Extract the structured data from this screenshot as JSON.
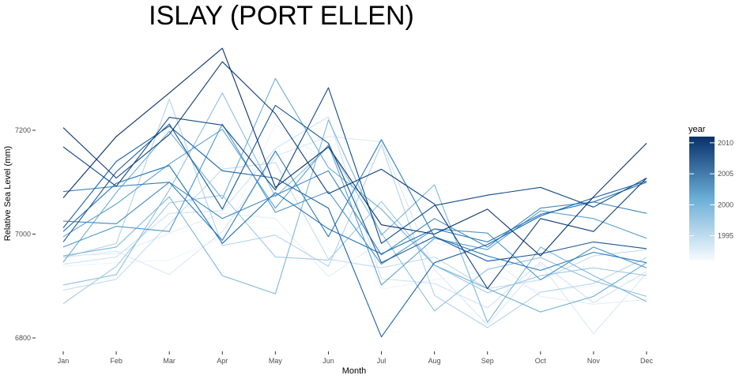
{
  "chart_data": {
    "type": "line",
    "title": "ISLAY (PORT ELLEN)",
    "xlabel": "Month",
    "ylabel": "Relative Sea Level (mm)",
    "categories": [
      "Jan",
      "Feb",
      "Mar",
      "Apr",
      "May",
      "Jun",
      "Jul",
      "Aug",
      "Sep",
      "Oct",
      "Nov",
      "Dec"
    ],
    "ylim": [
      6780,
      7380
    ],
    "yticks": [
      6800,
      7000,
      7200
    ],
    "grid": false,
    "legend": {
      "title": "year",
      "position": "right",
      "type": "colorbar",
      "range": [
        1991,
        2011
      ],
      "ticks": [
        1995,
        2000,
        2005,
        2010
      ],
      "low_color": "#f7fbff",
      "high_color": "#08306b"
    },
    "series": [
      {
        "year": 1991,
        "values": [
          6948,
          6966,
          6998,
          7020,
          7010,
          6982,
          6938,
          6962,
          6980,
          6996,
          6990,
          6982
        ]
      },
      {
        "year": 1992,
        "values": [
          6938,
          6945,
          6950,
          6993,
          7212,
          7138,
          6894,
          6912,
          6928,
          6888,
          6900,
          6915
        ]
      },
      {
        "year": 1993,
        "values": [
          6958,
          6962,
          7002,
          7040,
          7030,
          6918,
          6986,
          6985,
          6958,
          6880,
          6865,
          6874
        ]
      },
      {
        "year": 1994,
        "values": [
          6955,
          6967,
          6922,
          7005,
          7150,
          7188,
          7178,
          6932,
          6825,
          6942,
          6808,
          6925
        ]
      },
      {
        "year": 1995,
        "values": [
          6942,
          6956,
          7040,
          7045,
          7165,
          7226,
          6914,
          6905,
          6858,
          6946,
          6868,
          6928
        ]
      },
      {
        "year": 1996,
        "values": [
          6892,
          6913,
          7020,
          7125,
          7138,
          6952,
          6935,
          6956,
          6895,
          6912,
          6958,
          6970
        ]
      },
      {
        "year": 1997,
        "values": [
          6955,
          6982,
          7260,
          6978,
          6998,
          6938,
          7172,
          6882,
          6820,
          6888,
          6905,
          6955
        ]
      },
      {
        "year": 1998,
        "values": [
          6866,
          6938,
          7060,
          7075,
          6956,
          6950,
          7063,
          6940,
          6887,
          6920,
          6935,
          6920
        ]
      },
      {
        "year": 1999,
        "values": [
          6902,
          6922,
          7085,
          7272,
          7072,
          7168,
          7002,
          6852,
          6932,
          6955,
          6910,
          6880
        ]
      },
      {
        "year": 2000,
        "values": [
          6958,
          6975,
          7072,
          6920,
          6885,
          7220,
          6998,
          7095,
          6830,
          6975,
          6920,
          6870
        ]
      },
      {
        "year": 2001,
        "values": [
          6946,
          7080,
          7198,
          7068,
          7300,
          7128,
          7048,
          6940,
          6895,
          6850,
          6880,
          6945
        ]
      },
      {
        "year": 2002,
        "values": [
          6995,
          7058,
          7135,
          7202,
          7050,
          7172,
          6902,
          6992,
          6970,
          7045,
          7030,
          6992
        ]
      },
      {
        "year": 2003,
        "values": [
          6975,
          7015,
          7005,
          7212,
          7042,
          7082,
          6942,
          7010,
          7002,
          6912,
          6975,
          6935
        ]
      },
      {
        "year": 2004,
        "values": [
          7025,
          7020,
          7100,
          7030,
          7075,
          7122,
          6960,
          7030,
          6975,
          7050,
          7062,
          7040
        ]
      },
      {
        "year": 2005,
        "values": [
          7082,
          7092,
          7100,
          6988,
          7160,
          6995,
          7182,
          6995,
          6958,
          6930,
          6965,
          6945
        ]
      },
      {
        "year": 2006,
        "values": [
          7005,
          7098,
          7132,
          6982,
          7080,
          7010,
          6962,
          7010,
          6985,
          7038,
          7062,
          7100
        ]
      },
      {
        "year": 2007,
        "values": [
          7012,
          7140,
          7208,
          7122,
          7108,
          7050,
          6802,
          6945,
          6980,
          7035,
          7070,
          7102
        ]
      },
      {
        "year": 2008,
        "values": [
          6985,
          7120,
          7212,
          7048,
          7248,
          7175,
          6945,
          6995,
          6948,
          6962,
          6985,
          6972
        ]
      },
      {
        "year": 2009,
        "values": [
          7168,
          7092,
          7225,
          7210,
          7085,
          7282,
          6982,
          7055,
          7075,
          7090,
          7052,
          7108
        ]
      },
      {
        "year": 2010,
        "values": [
          7205,
          7108,
          7192,
          7332,
          7232,
          7078,
          7125,
          7058,
          6895,
          7030,
          7005,
          7108
        ]
      },
      {
        "year": 2011,
        "values": [
          7070,
          7188,
          7272,
          7358,
          7090,
          7168,
          7018,
          7000,
          7048,
          6958,
          7072,
          7175
        ]
      }
    ]
  }
}
